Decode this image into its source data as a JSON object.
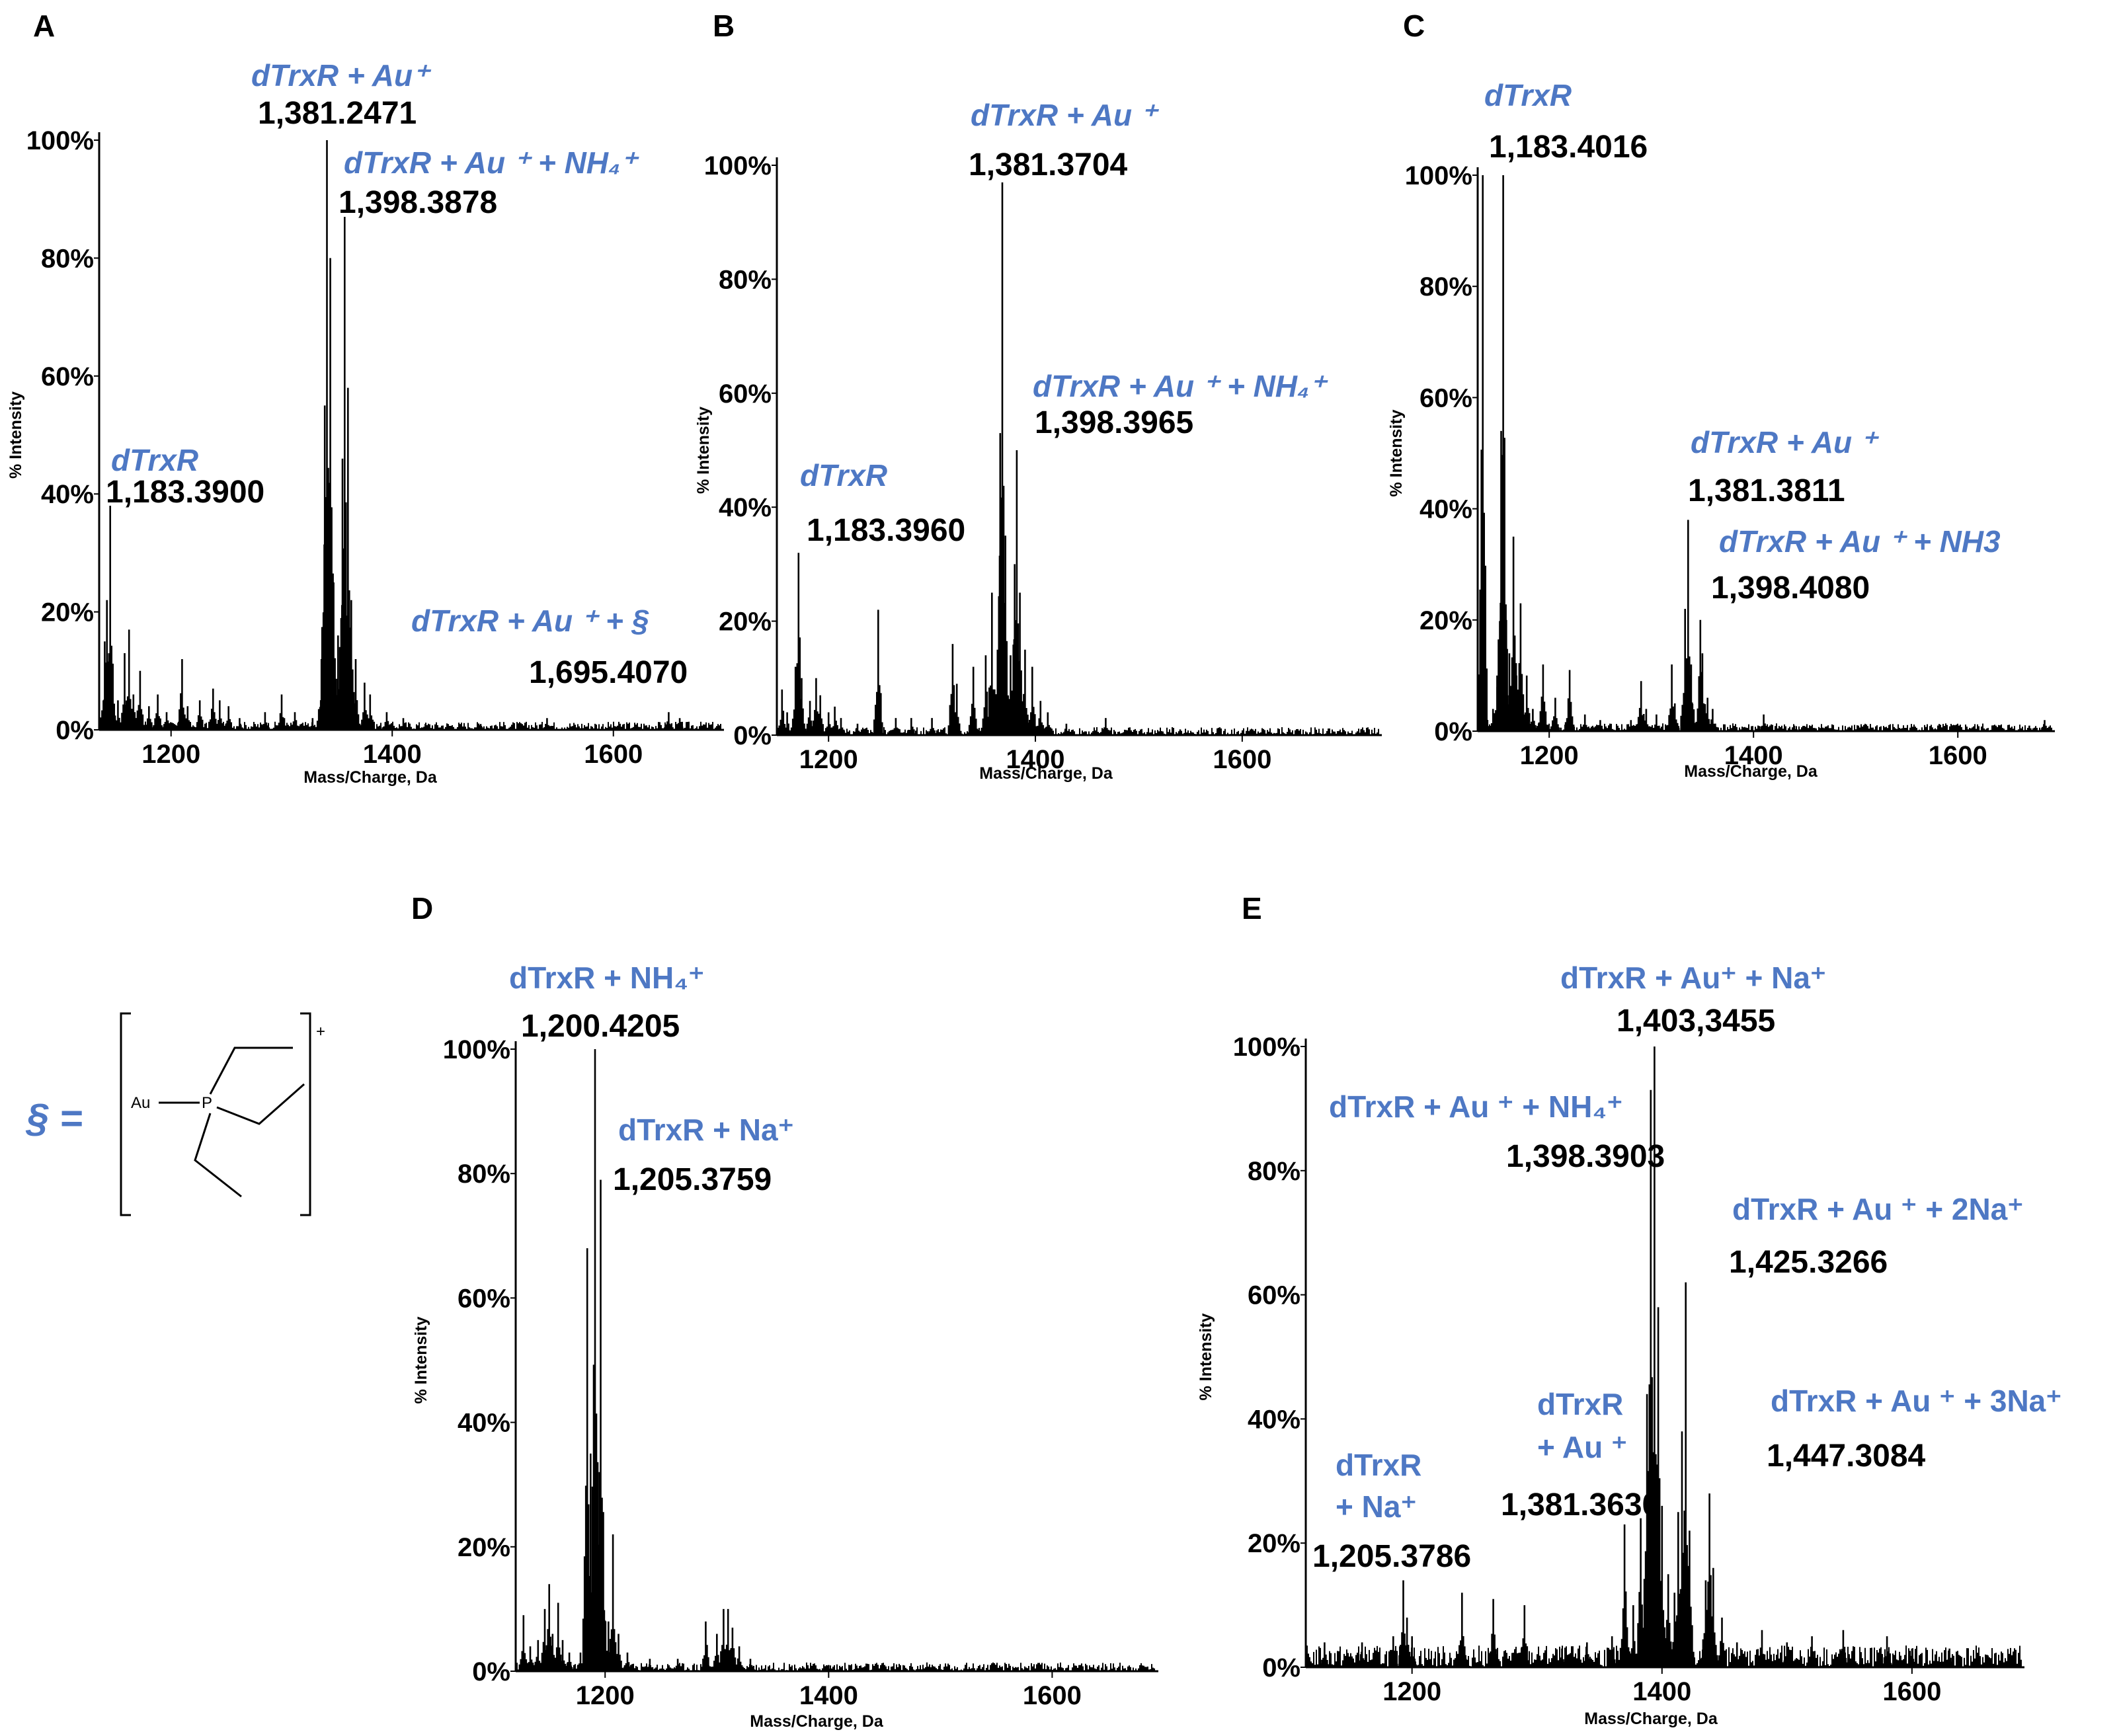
{
  "figure": {
    "section_symbol_def": "§ =",
    "structure": {
      "metal": "Au",
      "phosphorus": "P",
      "charge": "+"
    }
  },
  "chart_data": [
    {
      "type": "line",
      "panel": "A",
      "xlabel": "Mass/Charge, Da",
      "ylabel": "% Intensity",
      "xlim": [
        1135,
        1700
      ],
      "ylim": [
        0,
        100
      ],
      "xticks": [
        1200,
        1400,
        1600
      ],
      "yticks": [
        0,
        20,
        40,
        60,
        80,
        100
      ],
      "series": [
        {
          "name": "spectrum",
          "peaks": [
            [
              1140,
              15
            ],
            [
              1142,
              22
            ],
            [
              1145,
              38
            ],
            [
              1147,
              8
            ],
            [
              1152,
              5
            ],
            [
              1158,
              13
            ],
            [
              1162,
              17
            ],
            [
              1166,
              6
            ],
            [
              1172,
              10
            ],
            [
              1180,
              4
            ],
            [
              1188,
              6
            ],
            [
              1196,
              3
            ],
            [
              1210,
              12
            ],
            [
              1215,
              4
            ],
            [
              1226,
              5
            ],
            [
              1238,
              7
            ],
            [
              1244,
              5
            ],
            [
              1252,
              4
            ],
            [
              1262,
              2
            ],
            [
              1285,
              3
            ],
            [
              1300,
              6
            ],
            [
              1312,
              3
            ],
            [
              1328,
              2
            ],
            [
              1336,
              12
            ],
            [
              1339,
              55
            ],
            [
              1341,
              100
            ],
            [
              1344,
              80
            ],
            [
              1347,
              25
            ],
            [
              1351,
              16
            ],
            [
              1355,
              46
            ],
            [
              1357,
              87
            ],
            [
              1360,
              58
            ],
            [
              1363,
              22
            ],
            [
              1367,
              12
            ],
            [
              1375,
              8
            ],
            [
              1380,
              6
            ],
            [
              1395,
              3
            ],
            [
              1410,
              2
            ],
            [
              1430,
              1
            ],
            [
              1480,
              1
            ],
            [
              1540,
              2
            ],
            [
              1650,
              3
            ],
            [
              1660,
              2
            ]
          ]
        }
      ],
      "annotations": [
        {
          "label": "dTrxR + Au⁺",
          "value": "1,381.2471"
        },
        {
          "label": "dTrxR + Au ⁺ + NH₄⁺",
          "value": "1,398.3878"
        },
        {
          "label": "dTrxR",
          "value": "1,183.3900"
        },
        {
          "label": "dTrxR + Au ⁺ +  §",
          "value": "1,695.4070"
        }
      ]
    },
    {
      "type": "line",
      "panel": "B",
      "xlabel": "Mass/Charge, Da",
      "ylabel": "% Intensity",
      "xlim": [
        1150,
        1735
      ],
      "ylim": [
        0,
        100
      ],
      "xticks": [
        1200,
        1400,
        1600
      ],
      "yticks": [
        0,
        20,
        40,
        60,
        80,
        100
      ],
      "series": [
        {
          "name": "spectrum",
          "peaks": [
            [
              1155,
              8
            ],
            [
              1160,
              4
            ],
            [
              1168,
              12
            ],
            [
              1171,
              32
            ],
            [
              1174,
              10
            ],
            [
              1182,
              6
            ],
            [
              1188,
              10
            ],
            [
              1192,
              7
            ],
            [
              1200,
              4
            ],
            [
              1206,
              5
            ],
            [
              1212,
              3
            ],
            [
              1228,
              2
            ],
            [
              1248,
              22
            ],
            [
              1265,
              3
            ],
            [
              1280,
              3
            ],
            [
              1300,
              3
            ],
            [
              1320,
              16
            ],
            [
              1324,
              9
            ],
            [
              1340,
              12
            ],
            [
              1352,
              14
            ],
            [
              1358,
              25
            ],
            [
              1366,
              53
            ],
            [
              1368,
              97
            ],
            [
              1371,
              35
            ],
            [
              1376,
              14
            ],
            [
              1380,
              30
            ],
            [
              1382,
              50
            ],
            [
              1385,
              25
            ],
            [
              1390,
              15
            ],
            [
              1397,
              12
            ],
            [
              1405,
              6
            ],
            [
              1412,
              4
            ],
            [
              1430,
              2
            ],
            [
              1468,
              3
            ],
            [
              1540,
              1
            ],
            [
              1715,
              1
            ]
          ]
        }
      ],
      "annotations": [
        {
          "label": "dTrxR +  Au ⁺",
          "value": "1,381.3704"
        },
        {
          "label": "dTrxR + Au ⁺ + NH₄⁺",
          "value": "1,398.3965"
        },
        {
          "label": "dTrxR",
          "value": "1,183.3960"
        }
      ]
    },
    {
      "type": "line",
      "panel": "C",
      "xlabel": "Mass/Charge, Da",
      "ylabel": "% Intensity",
      "xlim": [
        1130,
        1695
      ],
      "ylim": [
        0,
        100
      ],
      "xticks": [
        1200,
        1400,
        1600
      ],
      "yticks": [
        0,
        20,
        40,
        60,
        80,
        100
      ],
      "series": [
        {
          "name": "spectrum",
          "peaks": [
            [
              1135,
              100
            ],
            [
              1137,
              6
            ],
            [
              1145,
              4
            ],
            [
              1149,
              10
            ],
            [
              1153,
              54
            ],
            [
              1155,
              100
            ],
            [
              1158,
              20
            ],
            [
              1161,
              14
            ],
            [
              1165,
              35
            ],
            [
              1168,
              10
            ],
            [
              1172,
              23
            ],
            [
              1178,
              10
            ],
            [
              1184,
              4
            ],
            [
              1194,
              12
            ],
            [
              1206,
              6
            ],
            [
              1220,
              11
            ],
            [
              1235,
              3
            ],
            [
              1250,
              2
            ],
            [
              1280,
              2
            ],
            [
              1290,
              9
            ],
            [
              1295,
              4
            ],
            [
              1305,
              3
            ],
            [
              1320,
              12
            ],
            [
              1323,
              5
            ],
            [
              1333,
              22
            ],
            [
              1336,
              38
            ],
            [
              1339,
              12
            ],
            [
              1348,
              20
            ],
            [
              1350,
              14
            ],
            [
              1355,
              6
            ],
            [
              1360,
              4
            ],
            [
              1410,
              3
            ],
            [
              1440,
              1
            ],
            [
              1510,
              1
            ],
            [
              1670,
              1
            ],
            [
              1685,
              2
            ]
          ]
        }
      ],
      "annotations": [
        {
          "label": "dTrxR",
          "value": "1,183.4016"
        },
        {
          "label": "dTrxR + Au ⁺",
          "value": "1,381.3811"
        },
        {
          "label": "dTrxR + Au ⁺ + NH3",
          "value": "1,398.4080"
        }
      ]
    },
    {
      "type": "line",
      "panel": "D",
      "xlabel": "Mass/Charge, Da",
      "ylabel": "% Intensity",
      "xlim": [
        1120,
        1695
      ],
      "ylim": [
        0,
        100
      ],
      "xticks": [
        1200,
        1400,
        1600
      ],
      "yticks": [
        0,
        20,
        40,
        60,
        80,
        100
      ],
      "series": [
        {
          "name": "spectrum",
          "peaks": [
            [
              1127,
              9
            ],
            [
              1133,
              4
            ],
            [
              1140,
              5
            ],
            [
              1146,
              10
            ],
            [
              1150,
              14
            ],
            [
              1153,
              6
            ],
            [
              1158,
              11
            ],
            [
              1162,
              5
            ],
            [
              1168,
              3
            ],
            [
              1178,
              3
            ],
            [
              1184,
              68
            ],
            [
              1187,
              35
            ],
            [
              1191,
              100
            ],
            [
              1193,
              30
            ],
            [
              1196,
              79
            ],
            [
              1198,
              25
            ],
            [
              1203,
              8
            ],
            [
              1207,
              22
            ],
            [
              1212,
              6
            ],
            [
              1220,
              3
            ],
            [
              1240,
              2
            ],
            [
              1265,
              2
            ],
            [
              1290,
              8
            ],
            [
              1300,
              6
            ],
            [
              1306,
              10
            ],
            [
              1310,
              10
            ],
            [
              1314,
              7
            ],
            [
              1320,
              4
            ],
            [
              1330,
              2
            ],
            [
              1400,
              1
            ],
            [
              1450,
              1
            ]
          ]
        }
      ],
      "annotations": [
        {
          "label": "dTrxR + NH₄⁺",
          "value": "1,200.4205"
        },
        {
          "label": "dTrxR + Na⁺",
          "value": "1,205.3759"
        }
      ]
    },
    {
      "type": "line",
      "panel": "E",
      "xlabel": "Mass/Charge, Da",
      "ylabel": "% Intensity",
      "xlim": [
        1115,
        1690
      ],
      "ylim": [
        0,
        100
      ],
      "xticks": [
        1200,
        1400,
        1600
      ],
      "yticks": [
        0,
        20,
        40,
        60,
        80,
        100
      ],
      "series": [
        {
          "name": "spectrum",
          "peaks": [
            [
              1130,
              4
            ],
            [
              1160,
              4
            ],
            [
              1185,
              5
            ],
            [
              1193,
              14
            ],
            [
              1196,
              8
            ],
            [
              1200,
              5
            ],
            [
              1240,
              12
            ],
            [
              1265,
              11
            ],
            [
              1290,
              10
            ],
            [
              1320,
              3
            ],
            [
              1340,
              4
            ],
            [
              1360,
              5
            ],
            [
              1370,
              23
            ],
            [
              1377,
              10
            ],
            [
              1383,
              24
            ],
            [
              1388,
              44
            ],
            [
              1391,
              93
            ],
            [
              1394,
              100
            ],
            [
              1397,
              58
            ],
            [
              1400,
              26
            ],
            [
              1405,
              15
            ],
            [
              1410,
              12
            ],
            [
              1413,
              25
            ],
            [
              1416,
              38
            ],
            [
              1419,
              62
            ],
            [
              1422,
              22
            ],
            [
              1435,
              14
            ],
            [
              1438,
              28
            ],
            [
              1441,
              16
            ],
            [
              1448,
              8
            ],
            [
              1460,
              4
            ],
            [
              1480,
              6
            ],
            [
              1500,
              4
            ],
            [
              1520,
              5
            ],
            [
              1545,
              6
            ],
            [
              1580,
              5
            ],
            [
              1600,
              3
            ],
            [
              1630,
              3
            ],
            [
              1660,
              2
            ]
          ]
        }
      ],
      "annotations": [
        {
          "label": "dTrxR + Au⁺ + Na⁺",
          "value": "1,403,3455"
        },
        {
          "label": "dTrxR + Au ⁺ + NH₄⁺",
          "value": "1,398.3903"
        },
        {
          "label": "dTrxR + Au ⁺ + 2Na⁺",
          "value": "1,425.3266"
        },
        {
          "label": "dTrxR + Au ⁺ + 3Na⁺",
          "value": "1,447.3084"
        },
        {
          "label": "dTrxR",
          "label2": "+ Au ⁺",
          "value": "1,381.3630"
        },
        {
          "label": "dTrxR",
          "label2": "+ Na⁺",
          "value": "1,205.3786"
        }
      ]
    }
  ]
}
